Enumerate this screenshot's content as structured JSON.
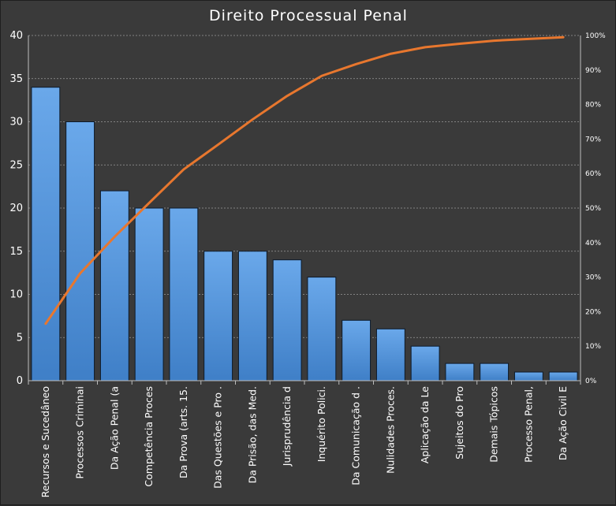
{
  "chart_data": {
    "type": "bar",
    "title": "Direito Processual Penal",
    "categories": [
      "Recursos e Sucedâneo",
      "Processos Criminai",
      "Da Ação Penal (a",
      "Competência Proces",
      "Da Prova (arts. 15.",
      "Das Questões e Pro .",
      "Da Prisão, das Med.",
      "Jurisprudência d",
      "Inquérito Polici.",
      "Da Comunicação d .",
      "Nulidades Proces.",
      "Aplicação da Le",
      "Sujeitos do Pro",
      "Demais Tópicos",
      "Processo Penal,",
      "Da Ação Civil E"
    ],
    "series": [
      {
        "type": "bar",
        "values": [
          34,
          30,
          22,
          20,
          20,
          15,
          15,
          14,
          12,
          7,
          6,
          4,
          2,
          2,
          1,
          1
        ]
      },
      {
        "type": "line",
        "axis": "right",
        "values": [
          16.5,
          31.1,
          41.7,
          51.5,
          61.2,
          68.4,
          75.7,
          82.5,
          88.3,
          91.7,
          94.7,
          96.6,
          97.6,
          98.5,
          99.0,
          99.5
        ]
      }
    ],
    "ylim": [
      0,
      40
    ],
    "yticks": [
      "0",
      "5",
      "10",
      "15",
      "20",
      "25",
      "30",
      "35",
      "40"
    ],
    "y2lim": [
      0,
      100
    ],
    "y2ticks": [
      "0%",
      "10%",
      "20%",
      "30%",
      "40%",
      "50%",
      "60%",
      "70%",
      "80%",
      "90%",
      "100%"
    ],
    "grid": true,
    "colors": {
      "bar_top": "#6aa8ea",
      "bar_bottom": "#3f7fc7",
      "line": "#e8772e",
      "background": "#3a3a3a"
    }
  }
}
